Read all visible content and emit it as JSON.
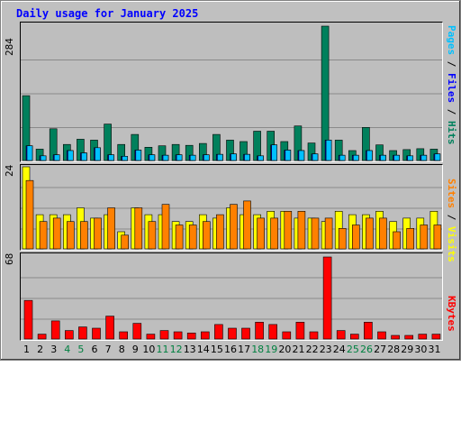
{
  "title": "Daily usage for January 2025",
  "colors": {
    "pages": "#00c0ff",
    "files": "#0000ff",
    "hits": "#00805c",
    "sites": "#ff8000",
    "visits": "#ffff00",
    "kbytes": "#ff0000",
    "weekday_label": "#000000",
    "weekend_label": "#008040",
    "title": "#0000ff"
  },
  "legend": {
    "top": {
      "pages": "Pages",
      "sep1": " / ",
      "files": "Files",
      "sep2": " / ",
      "hits": "Hits"
    },
    "middle": {
      "sites": "Sites",
      "sep": " / ",
      "visits": "Visits"
    },
    "bottom": {
      "kbytes": "KBytes"
    }
  },
  "chart_data": [
    {
      "type": "bar",
      "title": "Daily usage for January 2025",
      "ymax_label": "284",
      "ylim": [
        0,
        284
      ],
      "categories": [
        "1",
        "2",
        "3",
        "4",
        "5",
        "6",
        "7",
        "8",
        "9",
        "10",
        "11",
        "12",
        "13",
        "14",
        "15",
        "16",
        "17",
        "18",
        "19",
        "20",
        "21",
        "22",
        "23",
        "24",
        "25",
        "26",
        "27",
        "28",
        "29",
        "30",
        "31"
      ],
      "series": [
        {
          "name": "Hits",
          "values": [
            137,
            24,
            67,
            34,
            45,
            43,
            77,
            34,
            55,
            28,
            31,
            34,
            32,
            36,
            55,
            43,
            40,
            62,
            62,
            40,
            73,
            37,
            284,
            43,
            21,
            70,
            33,
            21,
            23,
            25,
            24
          ]
        },
        {
          "name": "Files",
          "values": [
            31,
            10,
            12,
            21,
            16,
            27,
            12,
            9,
            22,
            12,
            11,
            12,
            11,
            12,
            13,
            14,
            13,
            10,
            33,
            22,
            21,
            14,
            43,
            11,
            11,
            21,
            11,
            11,
            10,
            11,
            14
          ]
        },
        {
          "name": "Pages",
          "values": [
            31,
            10,
            12,
            21,
            16,
            27,
            12,
            9,
            22,
            12,
            11,
            12,
            11,
            12,
            13,
            14,
            13,
            10,
            33,
            22,
            21,
            14,
            43,
            11,
            11,
            21,
            11,
            11,
            10,
            11,
            14
          ]
        }
      ]
    },
    {
      "type": "bar",
      "ymax_label": "24",
      "ylim": [
        0,
        24
      ],
      "categories": [
        "1",
        "2",
        "3",
        "4",
        "5",
        "6",
        "7",
        "8",
        "9",
        "10",
        "11",
        "12",
        "13",
        "14",
        "15",
        "16",
        "17",
        "18",
        "19",
        "20",
        "21",
        "22",
        "23",
        "24",
        "25",
        "26",
        "27",
        "28",
        "29",
        "30",
        "31"
      ],
      "series": [
        {
          "name": "Visits",
          "values": [
            24,
            10,
            10,
            10,
            12,
            9,
            10,
            5,
            12,
            10,
            10,
            8,
            8,
            10,
            9,
            12,
            10,
            10,
            11,
            11,
            9,
            9,
            8,
            11,
            10,
            10,
            11,
            8,
            9,
            9,
            11
          ]
        },
        {
          "name": "Sites",
          "values": [
            20,
            8,
            9,
            8,
            8,
            9,
            12,
            4,
            12,
            8,
            13,
            7,
            7,
            8,
            10,
            13,
            14,
            9,
            9,
            11,
            11,
            9,
            9,
            6,
            7,
            9,
            9,
            5,
            6,
            7,
            7
          ]
        }
      ]
    },
    {
      "type": "bar",
      "ymax_label": "68",
      "ylim": [
        0,
        68
      ],
      "categories": [
        "1",
        "2",
        "3",
        "4",
        "5",
        "6",
        "7",
        "8",
        "9",
        "10",
        "11",
        "12",
        "13",
        "14",
        "15",
        "16",
        "17",
        "18",
        "19",
        "20",
        "21",
        "22",
        "23",
        "24",
        "25",
        "26",
        "27",
        "28",
        "29",
        "30",
        "31"
      ],
      "series": [
        {
          "name": "KBytes",
          "values": [
            32,
            4,
            15,
            7,
            10,
            9,
            19,
            6,
            13,
            4,
            7,
            6,
            5,
            6,
            12,
            9,
            9,
            14,
            12,
            6,
            14,
            6,
            68,
            7,
            4,
            14,
            6,
            3,
            3,
            4,
            4
          ]
        }
      ]
    }
  ],
  "x_labels": [
    "1",
    "2",
    "3",
    "4",
    "5",
    "6",
    "7",
    "8",
    "9",
    "10",
    "11",
    "12",
    "13",
    "14",
    "15",
    "16",
    "17",
    "18",
    "19",
    "20",
    "21",
    "22",
    "23",
    "24",
    "25",
    "26",
    "27",
    "28",
    "29",
    "30",
    "31"
  ],
  "weekend_days": [
    4,
    5,
    11,
    12,
    18,
    19,
    25,
    26
  ]
}
